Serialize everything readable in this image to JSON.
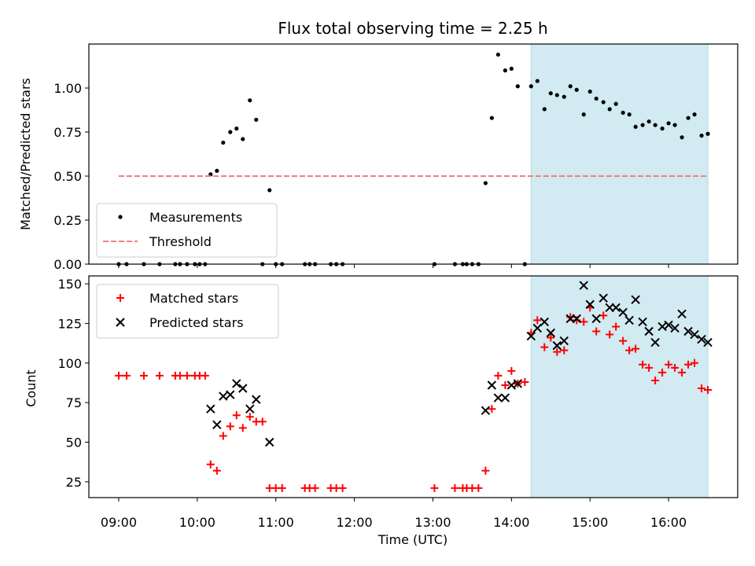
{
  "chart_data": {
    "title": "Flux total observing time = 2.25 h",
    "xlabel": "Time (UTC)",
    "xlim": [
      8.62,
      16.88
    ],
    "xticks": [
      9,
      10,
      11,
      12,
      13,
      14,
      15,
      16
    ],
    "xtick_labels": [
      "09:00",
      "10:00",
      "11:00",
      "12:00",
      "13:00",
      "14:00",
      "15:00",
      "16:00"
    ],
    "highlight_span": {
      "x": [
        14.25,
        16.5
      ],
      "color": "#add8e6"
    },
    "panels": [
      {
        "type": "scatter",
        "ylabel": "Matched/Predicted stars",
        "ylim": [
          0,
          1.25
        ],
        "yticks": [
          "0.00",
          "0.25",
          "0.50",
          "0.75",
          "1.00"
        ],
        "series": [
          {
            "name": "Measurements",
            "marker": "dot",
            "color": "#000000",
            "x": [
              9.0,
              9.1,
              9.32,
              9.52,
              9.72,
              9.78,
              9.87,
              9.97,
              10.03,
              10.1,
              10.17,
              10.25,
              10.33,
              10.42,
              10.5,
              10.58,
              10.67,
              10.75,
              10.83,
              10.92,
              11.0,
              11.08,
              11.37,
              11.43,
              11.5,
              11.7,
              11.77,
              11.85,
              13.02,
              13.28,
              13.38,
              13.43,
              13.5,
              13.58,
              13.67,
              13.75,
              13.83,
              13.92,
              14.0,
              14.08,
              14.17,
              14.25,
              14.33,
              14.42,
              14.5,
              14.58,
              14.67,
              14.75,
              14.83,
              14.92,
              15.0,
              15.08,
              15.17,
              15.25,
              15.33,
              15.42,
              15.5,
              15.58,
              15.67,
              15.75,
              15.83,
              15.92,
              16.0,
              16.08,
              16.17,
              16.25,
              16.33,
              16.42,
              16.5
            ],
            "y": [
              0.0,
              0.0,
              0.0,
              0.0,
              0.0,
              0.0,
              0.0,
              0.0,
              0.0,
              0.0,
              0.51,
              0.53,
              0.69,
              0.75,
              0.77,
              0.71,
              0.93,
              0.82,
              0.0,
              0.42,
              0.0,
              0.0,
              0.0,
              0.0,
              0.0,
              0.0,
              0.0,
              0.0,
              0.0,
              0.0,
              0.0,
              0.0,
              0.0,
              0.0,
              0.46,
              0.83,
              1.19,
              1.1,
              1.11,
              1.01,
              0.0,
              1.01,
              1.04,
              0.88,
              0.97,
              0.96,
              0.95,
              1.01,
              0.99,
              0.85,
              0.98,
              0.94,
              0.92,
              0.88,
              0.91,
              0.86,
              0.85,
              0.78,
              0.79,
              0.81,
              0.79,
              0.77,
              0.8,
              0.79,
              0.72,
              0.83,
              0.85,
              0.73,
              0.74
            ]
          },
          {
            "name": "Threshold",
            "marker": "dashed-line",
            "color": "#f08080",
            "x": [
              9.0,
              16.5
            ],
            "y": [
              0.5,
              0.5
            ]
          }
        ],
        "legend_position": "lower-left"
      },
      {
        "type": "scatter",
        "ylabel": "Count",
        "ylim": [
          15,
          155
        ],
        "yticks": [
          "25",
          "50",
          "75",
          "100",
          "125",
          "150"
        ],
        "series": [
          {
            "name": "Matched stars",
            "marker": "plus",
            "color": "#ff0000",
            "x": [
              9.0,
              9.1,
              9.32,
              9.52,
              9.72,
              9.78,
              9.87,
              9.97,
              10.03,
              10.1,
              10.17,
              10.25,
              10.33,
              10.42,
              10.5,
              10.58,
              10.67,
              10.75,
              10.83,
              10.92,
              11.0,
              11.08,
              11.37,
              11.43,
              11.5,
              11.7,
              11.77,
              11.85,
              13.02,
              13.28,
              13.38,
              13.43,
              13.5,
              13.58,
              13.67,
              13.75,
              13.83,
              13.92,
              14.0,
              14.08,
              14.17,
              14.25,
              14.33,
              14.42,
              14.5,
              14.58,
              14.67,
              14.75,
              14.83,
              14.92,
              15.0,
              15.08,
              15.17,
              15.25,
              15.33,
              15.42,
              15.5,
              15.58,
              15.67,
              15.75,
              15.83,
              15.92,
              16.0,
              16.08,
              16.17,
              16.25,
              16.33,
              16.42,
              16.5
            ],
            "y": [
              92,
              92,
              92,
              92,
              92,
              92,
              92,
              92,
              92,
              92,
              36,
              32,
              54,
              60,
              67,
              59,
              66,
              63,
              63,
              21,
              21,
              21,
              21,
              21,
              21,
              21,
              21,
              21,
              21,
              21,
              21,
              21,
              21,
              21,
              32,
              71,
              92,
              86,
              95,
              87,
              88,
              119,
              127,
              110,
              116,
              107,
              108,
              129,
              127,
              126,
              135,
              120,
              130,
              118,
              123,
              114,
              108,
              109,
              99,
              97,
              89,
              94,
              99,
              97,
              94,
              99,
              100,
              84,
              83
            ]
          },
          {
            "name": "Predicted stars",
            "marker": "x",
            "color": "#000000",
            "x": [
              10.17,
              10.25,
              10.33,
              10.42,
              10.5,
              10.58,
              10.67,
              10.75,
              10.92,
              13.67,
              13.75,
              13.83,
              13.92,
              14.0,
              14.08,
              14.25,
              14.33,
              14.42,
              14.5,
              14.58,
              14.67,
              14.75,
              14.83,
              14.92,
              15.0,
              15.08,
              15.17,
              15.25,
              15.33,
              15.42,
              15.5,
              15.58,
              15.67,
              15.75,
              15.83,
              15.92,
              16.0,
              16.08,
              16.17,
              16.25,
              16.33,
              16.42,
              16.5
            ],
            "y": [
              71,
              61,
              79,
              80,
              87,
              84,
              71,
              77,
              50,
              70,
              86,
              78,
              78,
              86,
              87,
              117,
              122,
              126,
              119,
              111,
              114,
              128,
              128,
              149,
              137,
              128,
              141,
              135,
              135,
              132,
              127,
              140,
              126,
              120,
              113,
              123,
              124,
              122,
              131,
              120,
              118,
              115,
              113
            ]
          }
        ],
        "legend_position": "upper-left"
      }
    ]
  }
}
